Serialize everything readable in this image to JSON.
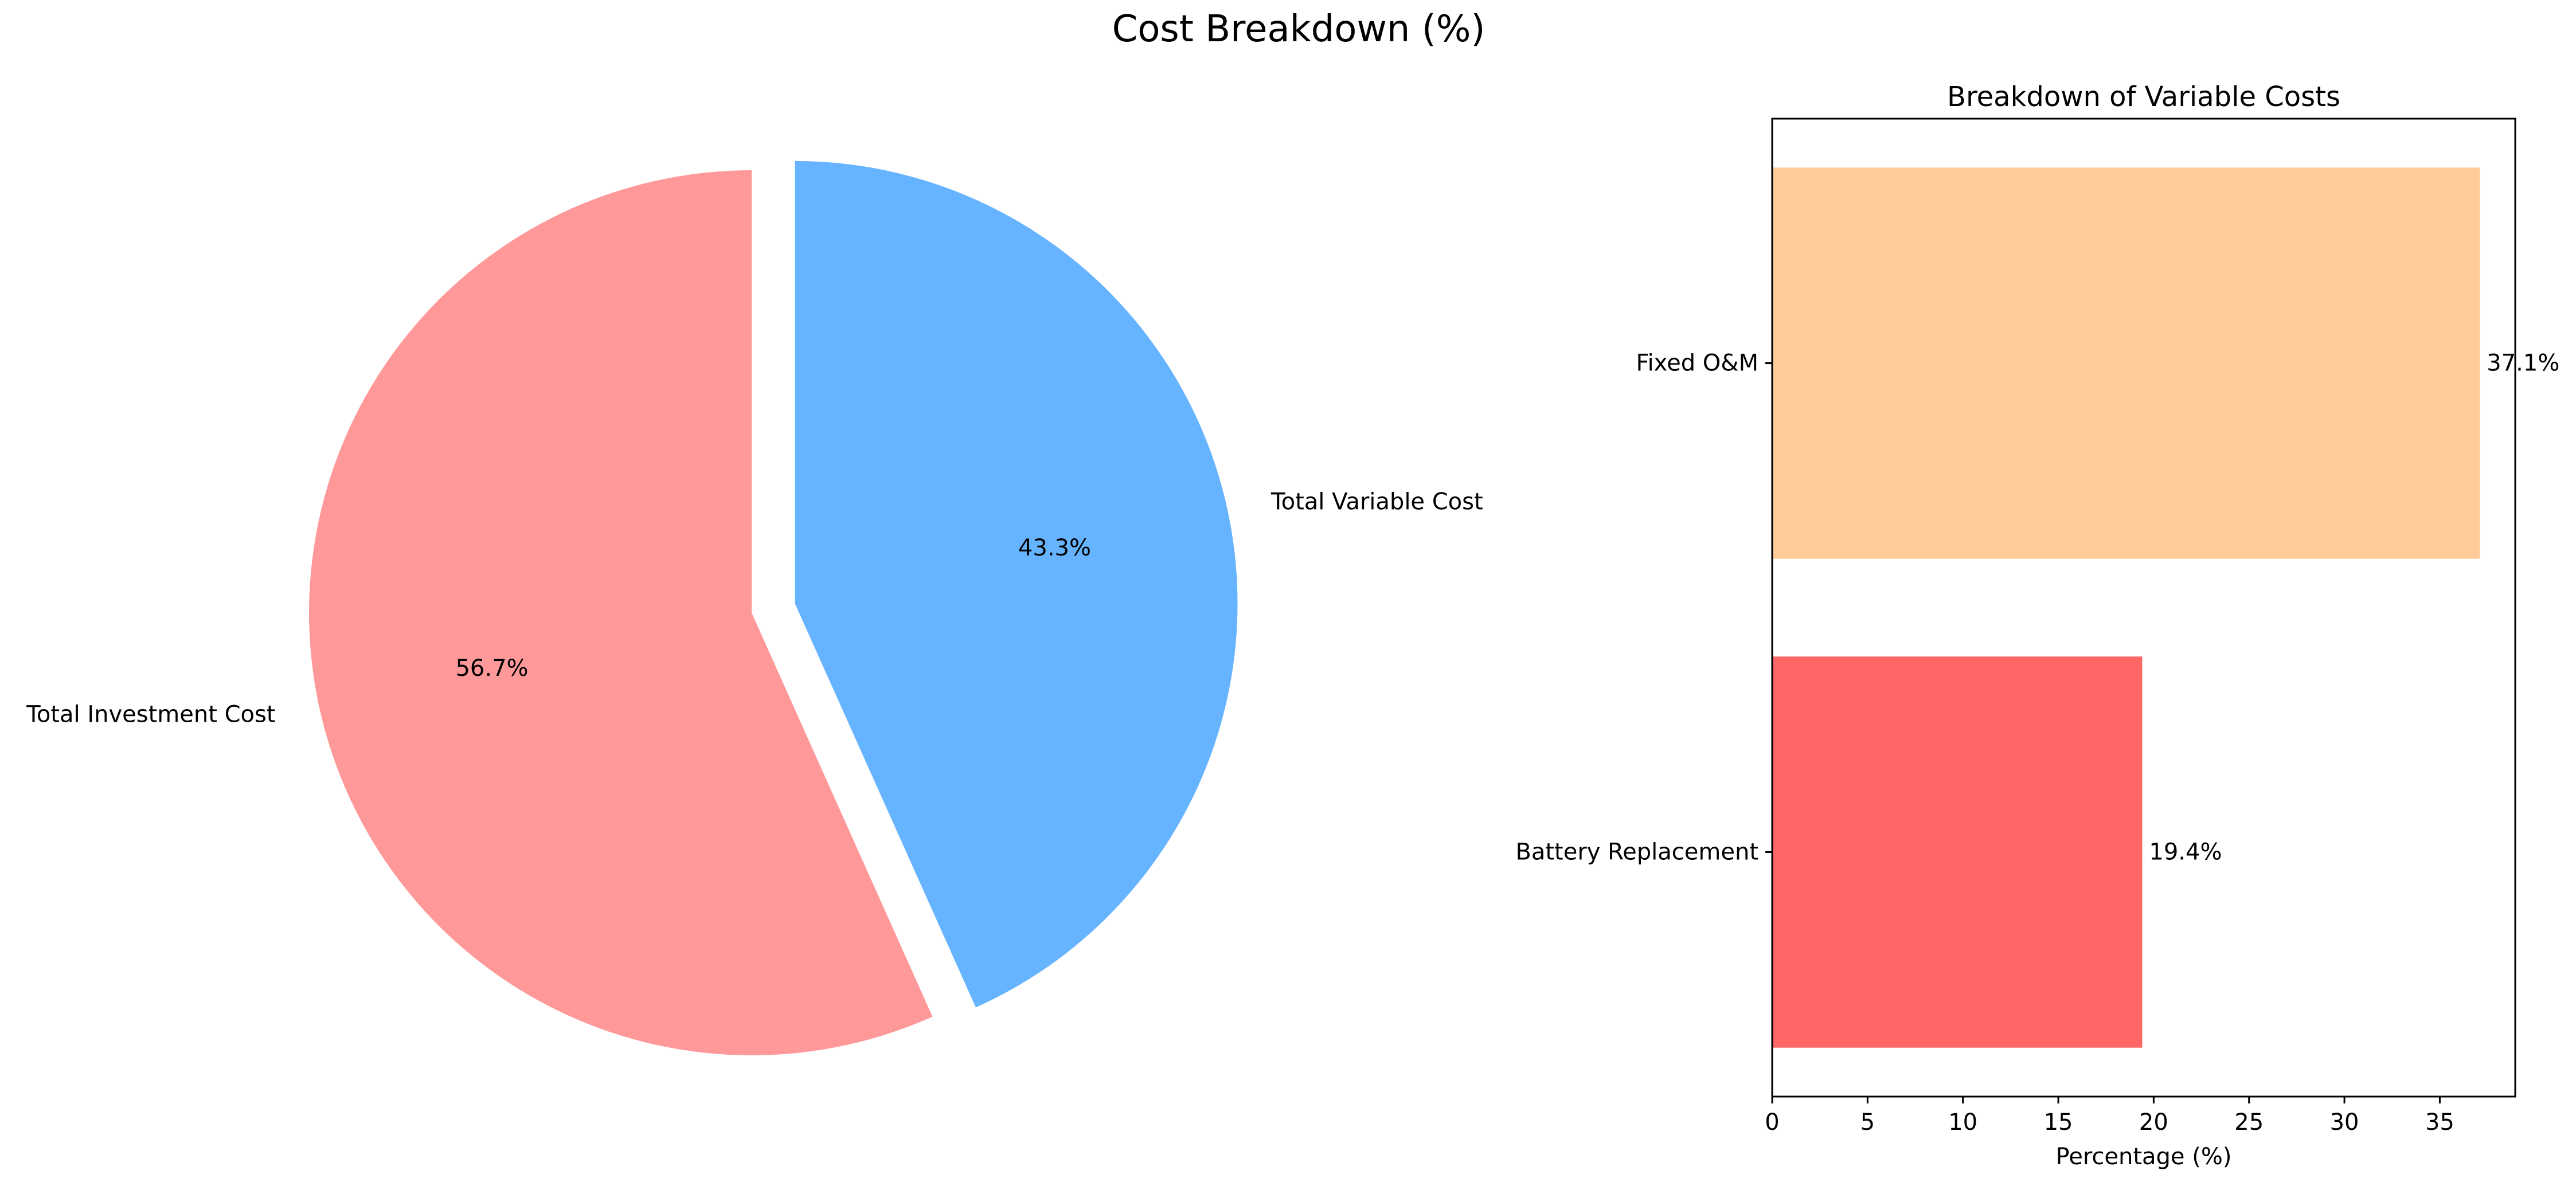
{
  "figure": {
    "title": "Cost Breakdown (%)"
  },
  "chart_data": [
    {
      "type": "pie",
      "labels": [
        "Total Investment Cost",
        "Total Variable Cost"
      ],
      "values": [
        56.7,
        43.3
      ],
      "autopct_labels": [
        "56.7%",
        "43.3%"
      ],
      "colors": [
        "#ff9999",
        "#66b3ff"
      ],
      "exploded": [
        false,
        true
      ],
      "start_angle_deg": 90
    },
    {
      "type": "bar",
      "orientation": "horizontal",
      "title": "Breakdown of Variable Costs",
      "xlabel": "Percentage (%)",
      "ylabel": "",
      "categories": [
        "Battery Replacement",
        "Fixed O&M"
      ],
      "values": [
        19.4,
        37.1
      ],
      "value_labels": [
        "19.4%",
        "37.1%"
      ],
      "colors": [
        "#ff6666",
        "#ffcc99"
      ],
      "xlim": [
        0,
        38.955
      ],
      "xticks": [
        0,
        5,
        10,
        15,
        20,
        25,
        30,
        35
      ],
      "grid": false
    }
  ]
}
